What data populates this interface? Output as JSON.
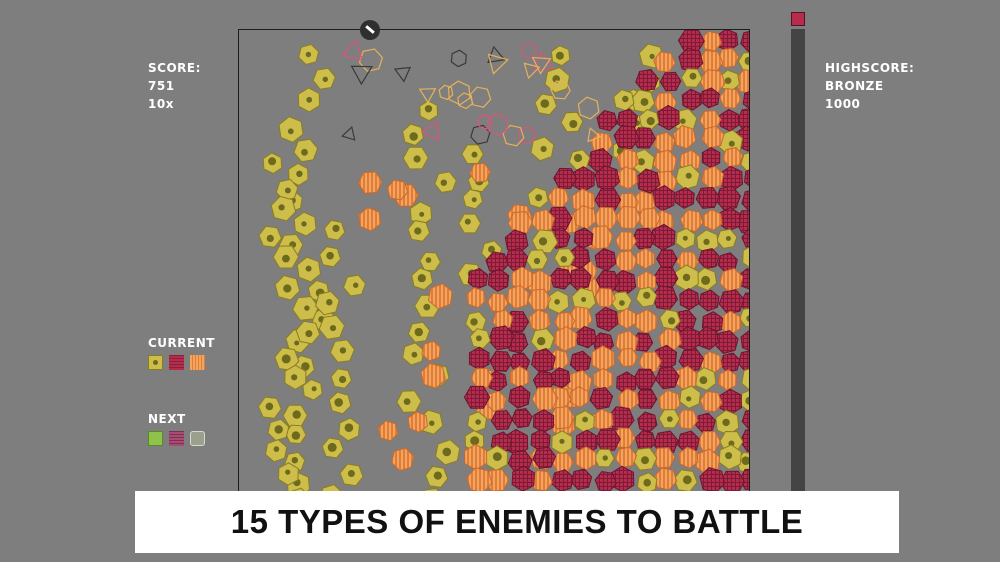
{
  "hud": {
    "score_label": "SCORE:",
    "score_value": "751",
    "multiplier": "10x",
    "highscore_label": "HIGHSCORE:",
    "highscore_tier": "BRONZE",
    "highscore_value": "1000",
    "current_label": "CURRENT",
    "next_label": "NEXT"
  },
  "current_pieces": [
    "cheese",
    "crimson",
    "orange"
  ],
  "next_pieces": [
    "green",
    "violet",
    "ghost"
  ],
  "caption": "15 TYPES OF ENEMIES TO BATTLE",
  "colors": {
    "background": "#7e7e7e",
    "cheese": "#cdbd4a",
    "crimson": "#b52c4d",
    "orange": "#f1a65c",
    "meter": "#444444"
  },
  "icons": {
    "launcher": "cannon-icon",
    "meter_cap": "progress-cap-icon"
  }
}
